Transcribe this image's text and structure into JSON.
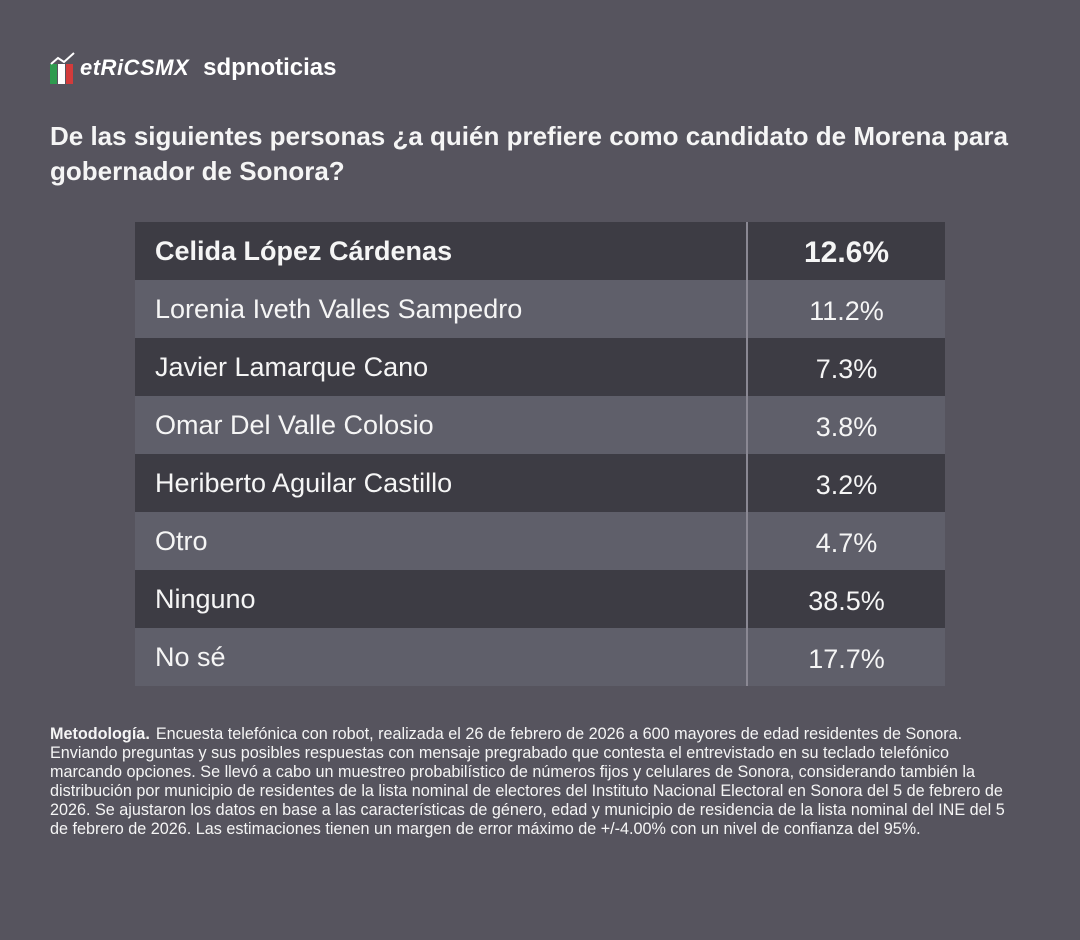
{
  "header": {
    "brand": "etRiCSMX",
    "partner": "sdpnoticias"
  },
  "title": "De las siguientes personas ¿a quién prefiere como candidato de Morena para gobernador de Sonora?",
  "table": {
    "rows": [
      [
        "Celida López Cárdenas",
        "12.6%"
      ],
      [
        "Lorenia Iveth Valles Sampedro",
        "11.2%"
      ],
      [
        "Javier Lamarque Cano",
        "7.3%"
      ],
      [
        "Omar Del Valle Colosio",
        "3.8%"
      ],
      [
        "Heriberto Aguilar Castillo",
        "3.2%"
      ],
      [
        "Otro",
        "4.7%"
      ],
      [
        "Ninguno",
        "38.5%"
      ],
      [
        "No sé",
        "17.7%"
      ]
    ]
  },
  "methodology": {
    "label": "Metodología.",
    "text": "Encuesta telefónica con robot, realizada el 26 de febrero de 2026 a 600 mayores de edad residentes de Sonora. Enviando preguntas y sus posibles respuestas con mensaje pregrabado que contesta el entrevistado en su teclado telefónico marcando opciones. Se llevó a cabo un muestreo probabilístico de números fijos y celulares de Sonora, considerando también la distribución por municipio de residentes de la lista nominal de electores del Instituto Nacional Electoral en Sonora del 5 de febrero de 2026. Se ajustaron los datos en base a las características de género, edad y municipio de residencia de la lista nominal del INE del 5 de febrero de 2026. Las estimaciones tienen un margen de error máximo de +/-4.00% con un nivel de confianza del 95%."
  }
}
